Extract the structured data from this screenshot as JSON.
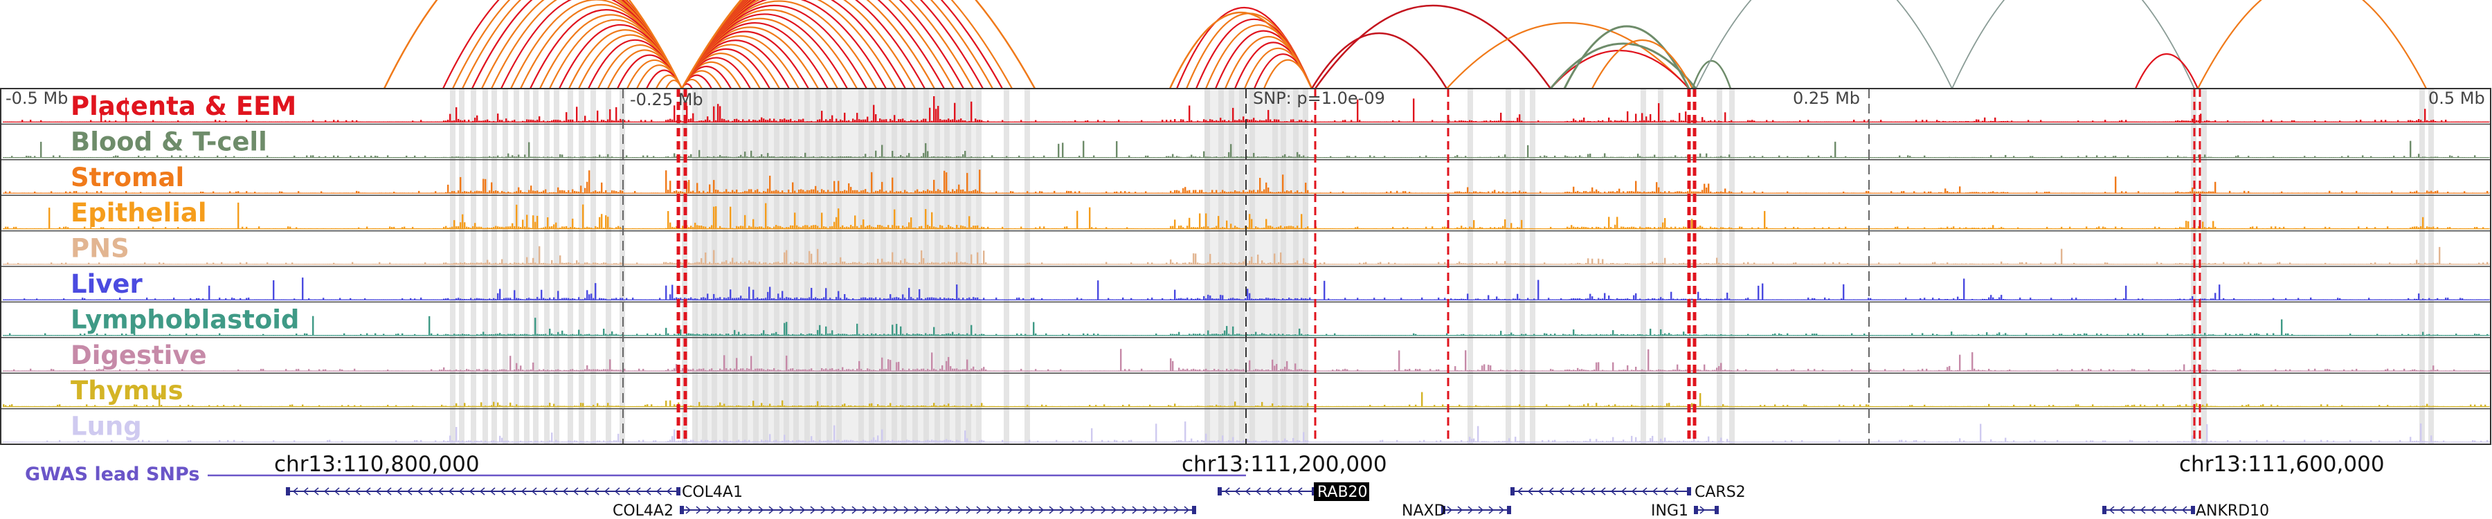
{
  "colors": {
    "placenta": "#e0141e",
    "blood": "#6e8c6a",
    "stromal": "#f07a1a",
    "epithelial": "#f59d1c",
    "pns": "#e2b591",
    "liver": "#4b4be0",
    "lymphoblastoid": "#3f9a86",
    "digestive": "#c68aa8",
    "thymus": "#d4b426",
    "lung": "#cfcaf0",
    "gwas": "#6a55c8",
    "snp_line": "#e0141e",
    "shade": "#dcdcdc"
  },
  "offset_labels": {
    "minus_half": "-0.5 Mb",
    "minus_quarter": "-0.25 Mb",
    "snp": "SNP: p=1.0e-09",
    "plus_quarter": "0.25 Mb",
    "plus_half": "0.5 Mb"
  },
  "tracks": [
    {
      "name": "Placenta & EEM",
      "color_key": "placenta"
    },
    {
      "name": "Blood & T-cell",
      "color_key": "blood"
    },
    {
      "name": "Stromal",
      "color_key": "stromal"
    },
    {
      "name": "Epithelial",
      "color_key": "epithelial"
    },
    {
      "name": "PNS",
      "color_key": "pns"
    },
    {
      "name": "Liver",
      "color_key": "liver"
    },
    {
      "name": "Lymphoblastoid",
      "color_key": "lymphoblastoid"
    },
    {
      "name": "Digestive",
      "color_key": "digestive"
    },
    {
      "name": "Thymus",
      "color_key": "thymus"
    },
    {
      "name": "Lung",
      "color_key": "lung"
    }
  ],
  "coords": [
    {
      "label": "chr13:110,800,000"
    },
    {
      "label": "chr13:111,200,000"
    },
    {
      "label": "chr13:111,600,000"
    }
  ],
  "gwas_label": "GWAS lead SNPs",
  "genes": [
    {
      "name": "COL4A1",
      "highlight": false
    },
    {
      "name": "COL4A2",
      "highlight": false
    },
    {
      "name": "RAB20",
      "highlight": true
    },
    {
      "name": "NAXD",
      "highlight": false
    },
    {
      "name": "CARS2",
      "highlight": false
    },
    {
      "name": "ING1",
      "highlight": false
    },
    {
      "name": "ANKRD10",
      "highlight": false
    }
  ]
}
